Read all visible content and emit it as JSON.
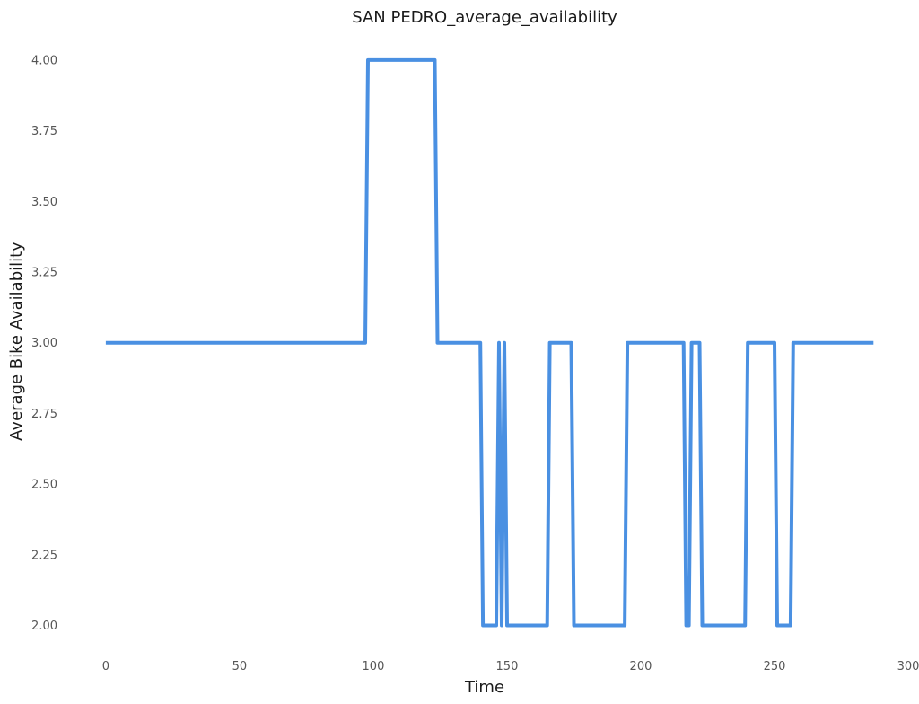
{
  "chart_data": {
    "type": "line",
    "title": "SAN PEDRO_average_availability",
    "xlabel": "Time",
    "ylabel": "Average Bike Availability",
    "xlim": [
      -4,
      300
    ],
    "ylim": [
      1.9,
      4.06
    ],
    "x_ticks": [
      0,
      50,
      100,
      150,
      200,
      250,
      300
    ],
    "y_ticks": [
      2.0,
      2.25,
      2.5,
      2.75,
      3.0,
      3.25,
      3.5,
      3.75,
      4.0
    ],
    "x_tick_labels": [
      "0",
      "50",
      "100",
      "150",
      "200",
      "250",
      "300"
    ],
    "y_tick_labels": [
      "2.00",
      "2.25",
      "2.50",
      "2.75",
      "3.00",
      "3.25",
      "3.50",
      "3.75",
      "4.00"
    ],
    "grid": false,
    "series": [
      {
        "color": "#4a90e2",
        "x": [
          0,
          97,
          98,
          123,
          124,
          140,
          141,
          146,
          147,
          148,
          149,
          150,
          165,
          166,
          174,
          175,
          194,
          195,
          216,
          217,
          218,
          219,
          222,
          223,
          239,
          240,
          250,
          251,
          256,
          257,
          287
        ],
        "y": [
          3,
          3,
          4,
          4,
          3,
          3,
          2,
          2,
          3,
          2,
          3,
          2,
          2,
          3,
          3,
          2,
          2,
          3,
          3,
          2,
          2,
          3,
          3,
          2,
          2,
          3,
          3,
          2,
          2,
          3,
          3
        ]
      }
    ]
  }
}
